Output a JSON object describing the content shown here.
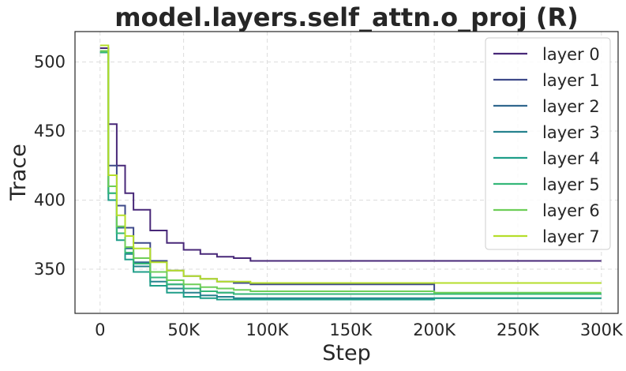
{
  "chart_data": {
    "type": "line",
    "title": "model.layers.self_attn.o_proj (R)",
    "xlabel": "Step",
    "ylabel": "Trace",
    "xlim": [
      -15000,
      310000
    ],
    "ylim": [
      318,
      522
    ],
    "x_ticks": [
      0,
      50000,
      100000,
      150000,
      200000,
      250000,
      300000
    ],
    "x_tick_labels": [
      "0",
      "50K",
      "100K",
      "150K",
      "200K",
      "250K",
      "300K"
    ],
    "y_ticks": [
      350,
      400,
      450,
      500
    ],
    "y_tick_labels": [
      "350",
      "400",
      "450",
      "500"
    ],
    "grid": true,
    "legend_position": "top-right",
    "x": [
      0,
      5000,
      10000,
      15000,
      20000,
      30000,
      40000,
      50000,
      60000,
      70000,
      80000,
      90000,
      120000,
      150000,
      190000,
      200000,
      250000,
      300000
    ],
    "series": [
      {
        "name": "layer 0",
        "color": "#482878",
        "values": [
          510,
          455,
          425,
          405,
          393,
          378,
          369,
          364,
          361,
          359,
          358,
          356,
          356,
          356,
          356,
          356,
          356,
          356
        ]
      },
      {
        "name": "layer 1",
        "color": "#3e4989",
        "values": [
          508,
          425,
          396,
          380,
          369,
          356,
          349,
          345,
          343,
          341,
          340,
          339,
          339,
          339,
          339,
          332,
          332,
          332
        ]
      },
      {
        "name": "layer 2",
        "color": "#31688e",
        "values": [
          507,
          410,
          380,
          365,
          355,
          344,
          339,
          336,
          334,
          333,
          332,
          332,
          332,
          332,
          332,
          332,
          332,
          332
        ]
      },
      {
        "name": "layer 3",
        "color": "#26828e",
        "values": [
          507,
          405,
          376,
          361,
          352,
          341,
          336,
          333,
          331,
          330,
          329,
          329,
          329,
          329,
          329,
          329,
          329,
          329
        ]
      },
      {
        "name": "layer 4",
        "color": "#1f9e89",
        "values": [
          507,
          400,
          371,
          357,
          348,
          338,
          333,
          330,
          329,
          328,
          328,
          328,
          328,
          328,
          328,
          329,
          329,
          329
        ]
      },
      {
        "name": "layer 5",
        "color": "#35b779",
        "values": [
          507,
          405,
          376,
          362,
          354,
          344,
          339,
          336,
          334,
          333,
          332,
          332,
          332,
          332,
          332,
          332,
          332,
          332
        ]
      },
      {
        "name": "layer 6",
        "color": "#6ece58",
        "values": [
          508,
          410,
          381,
          366,
          358,
          348,
          342,
          339,
          337,
          336,
          335,
          334,
          334,
          334,
          334,
          333,
          333,
          333
        ]
      },
      {
        "name": "layer 7",
        "color": "#b5de2b",
        "values": [
          512,
          418,
          389,
          374,
          365,
          355,
          349,
          345,
          343,
          341,
          341,
          340,
          340,
          340,
          340,
          340,
          340,
          340
        ]
      }
    ]
  }
}
